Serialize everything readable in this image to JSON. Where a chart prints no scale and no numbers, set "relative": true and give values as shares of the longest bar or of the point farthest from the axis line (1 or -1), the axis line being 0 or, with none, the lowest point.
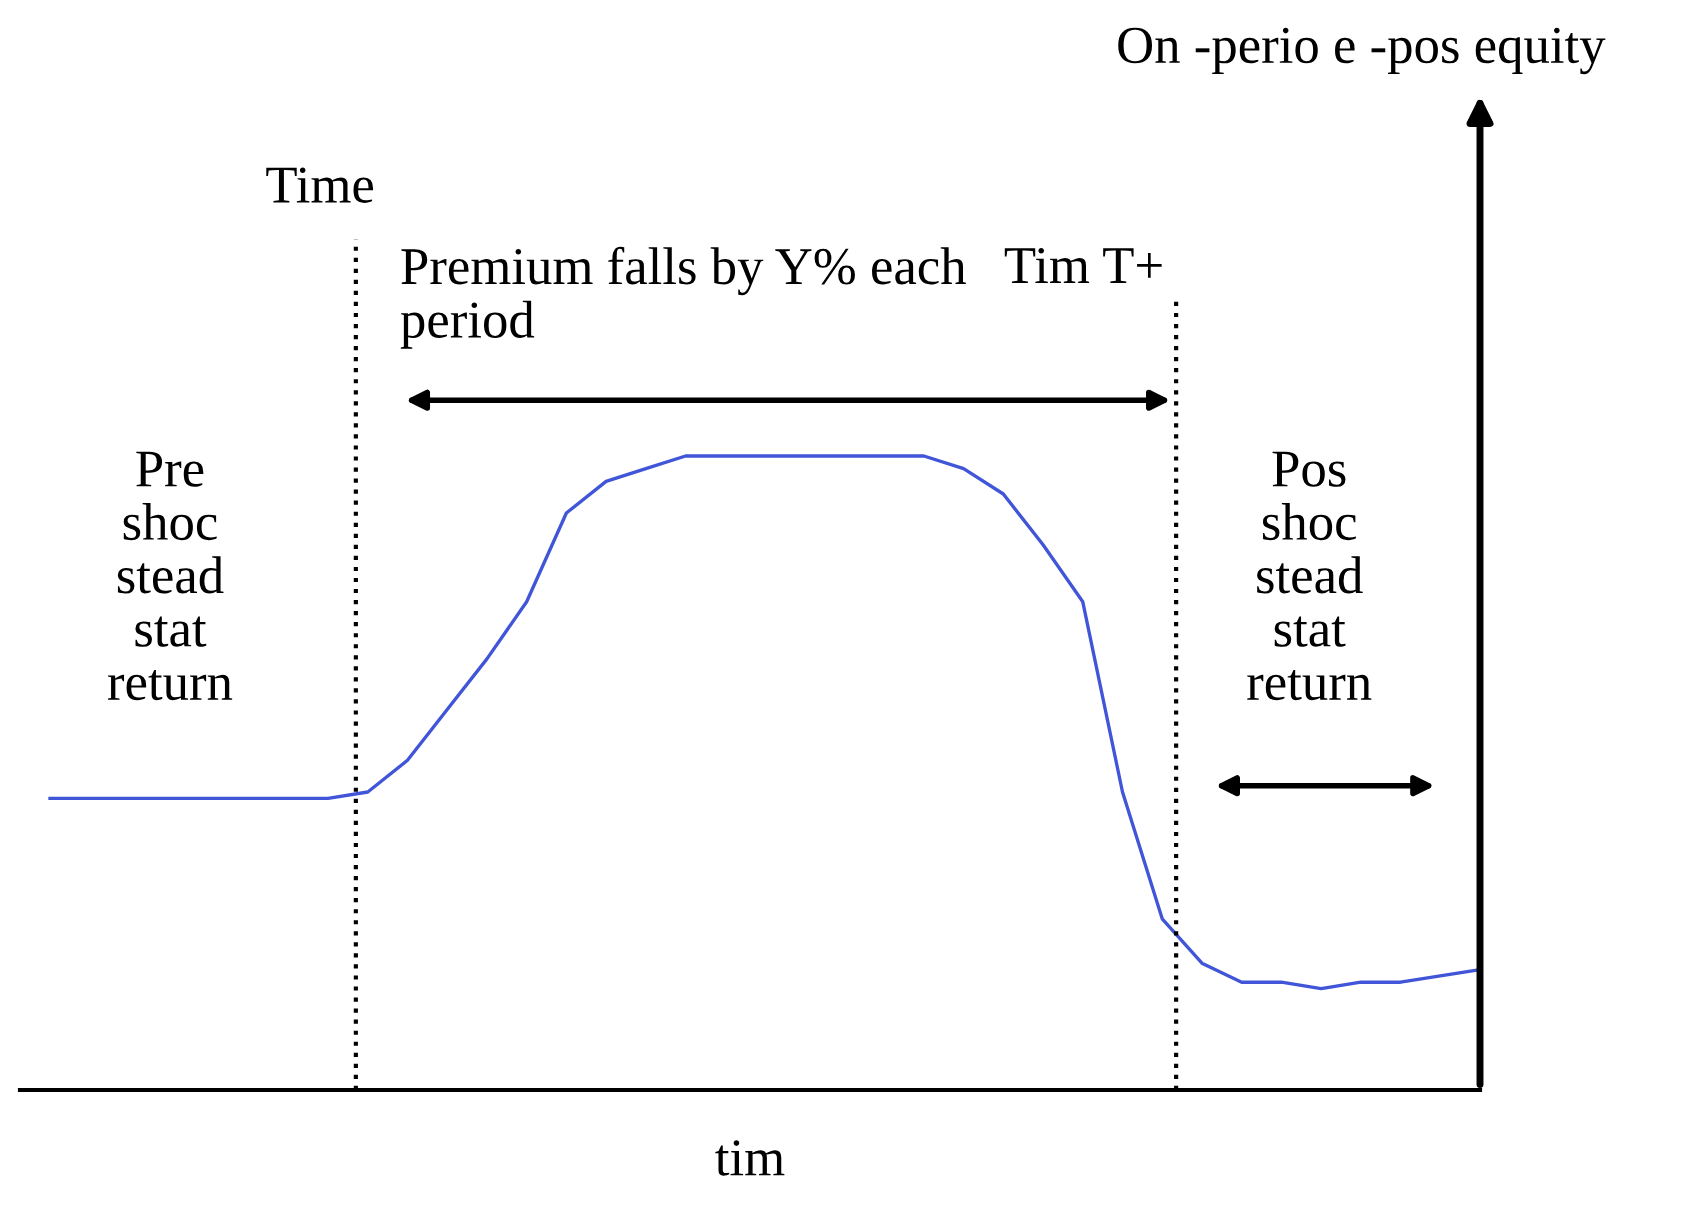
{
  "chart_data": {
    "type": "line",
    "relative": true,
    "xlabel": "tim",
    "categories": [
      null,
      null,
      null,
      null,
      null,
      null,
      null,
      null,
      null,
      null,
      null,
      null,
      null,
      null,
      null,
      null,
      null,
      null,
      null,
      null,
      null,
      null,
      null,
      null,
      null,
      null,
      null,
      null,
      null,
      null,
      null,
      null,
      null,
      null,
      null,
      null,
      null
    ],
    "series": [
      {
        "color": "#4055d8",
        "values": [
          0.46,
          0.46,
          0.46,
          0.46,
          0.46,
          0.46,
          0.46,
          0.46,
          0.47,
          0.52,
          0.6,
          0.68,
          0.77,
          0.91,
          0.96,
          0.98,
          1.0,
          1.0,
          1.0,
          1.0,
          1.0,
          1.0,
          1.0,
          0.98,
          0.94,
          0.86,
          0.77,
          0.47,
          0.27,
          0.2,
          0.17,
          0.17,
          0.16,
          0.17,
          0.17,
          0.18,
          0.19
        ]
      }
    ],
    "line_style": "solid",
    "annotations": [
      "On -perio e -pos equity",
      "Time",
      "Tim T+",
      "Premium falls by Y% each\nperiod",
      "Pre\nshoc\nstead\nstat\nreturn",
      "Pos\nshoc\nstead\nstat\nreturn"
    ]
  }
}
